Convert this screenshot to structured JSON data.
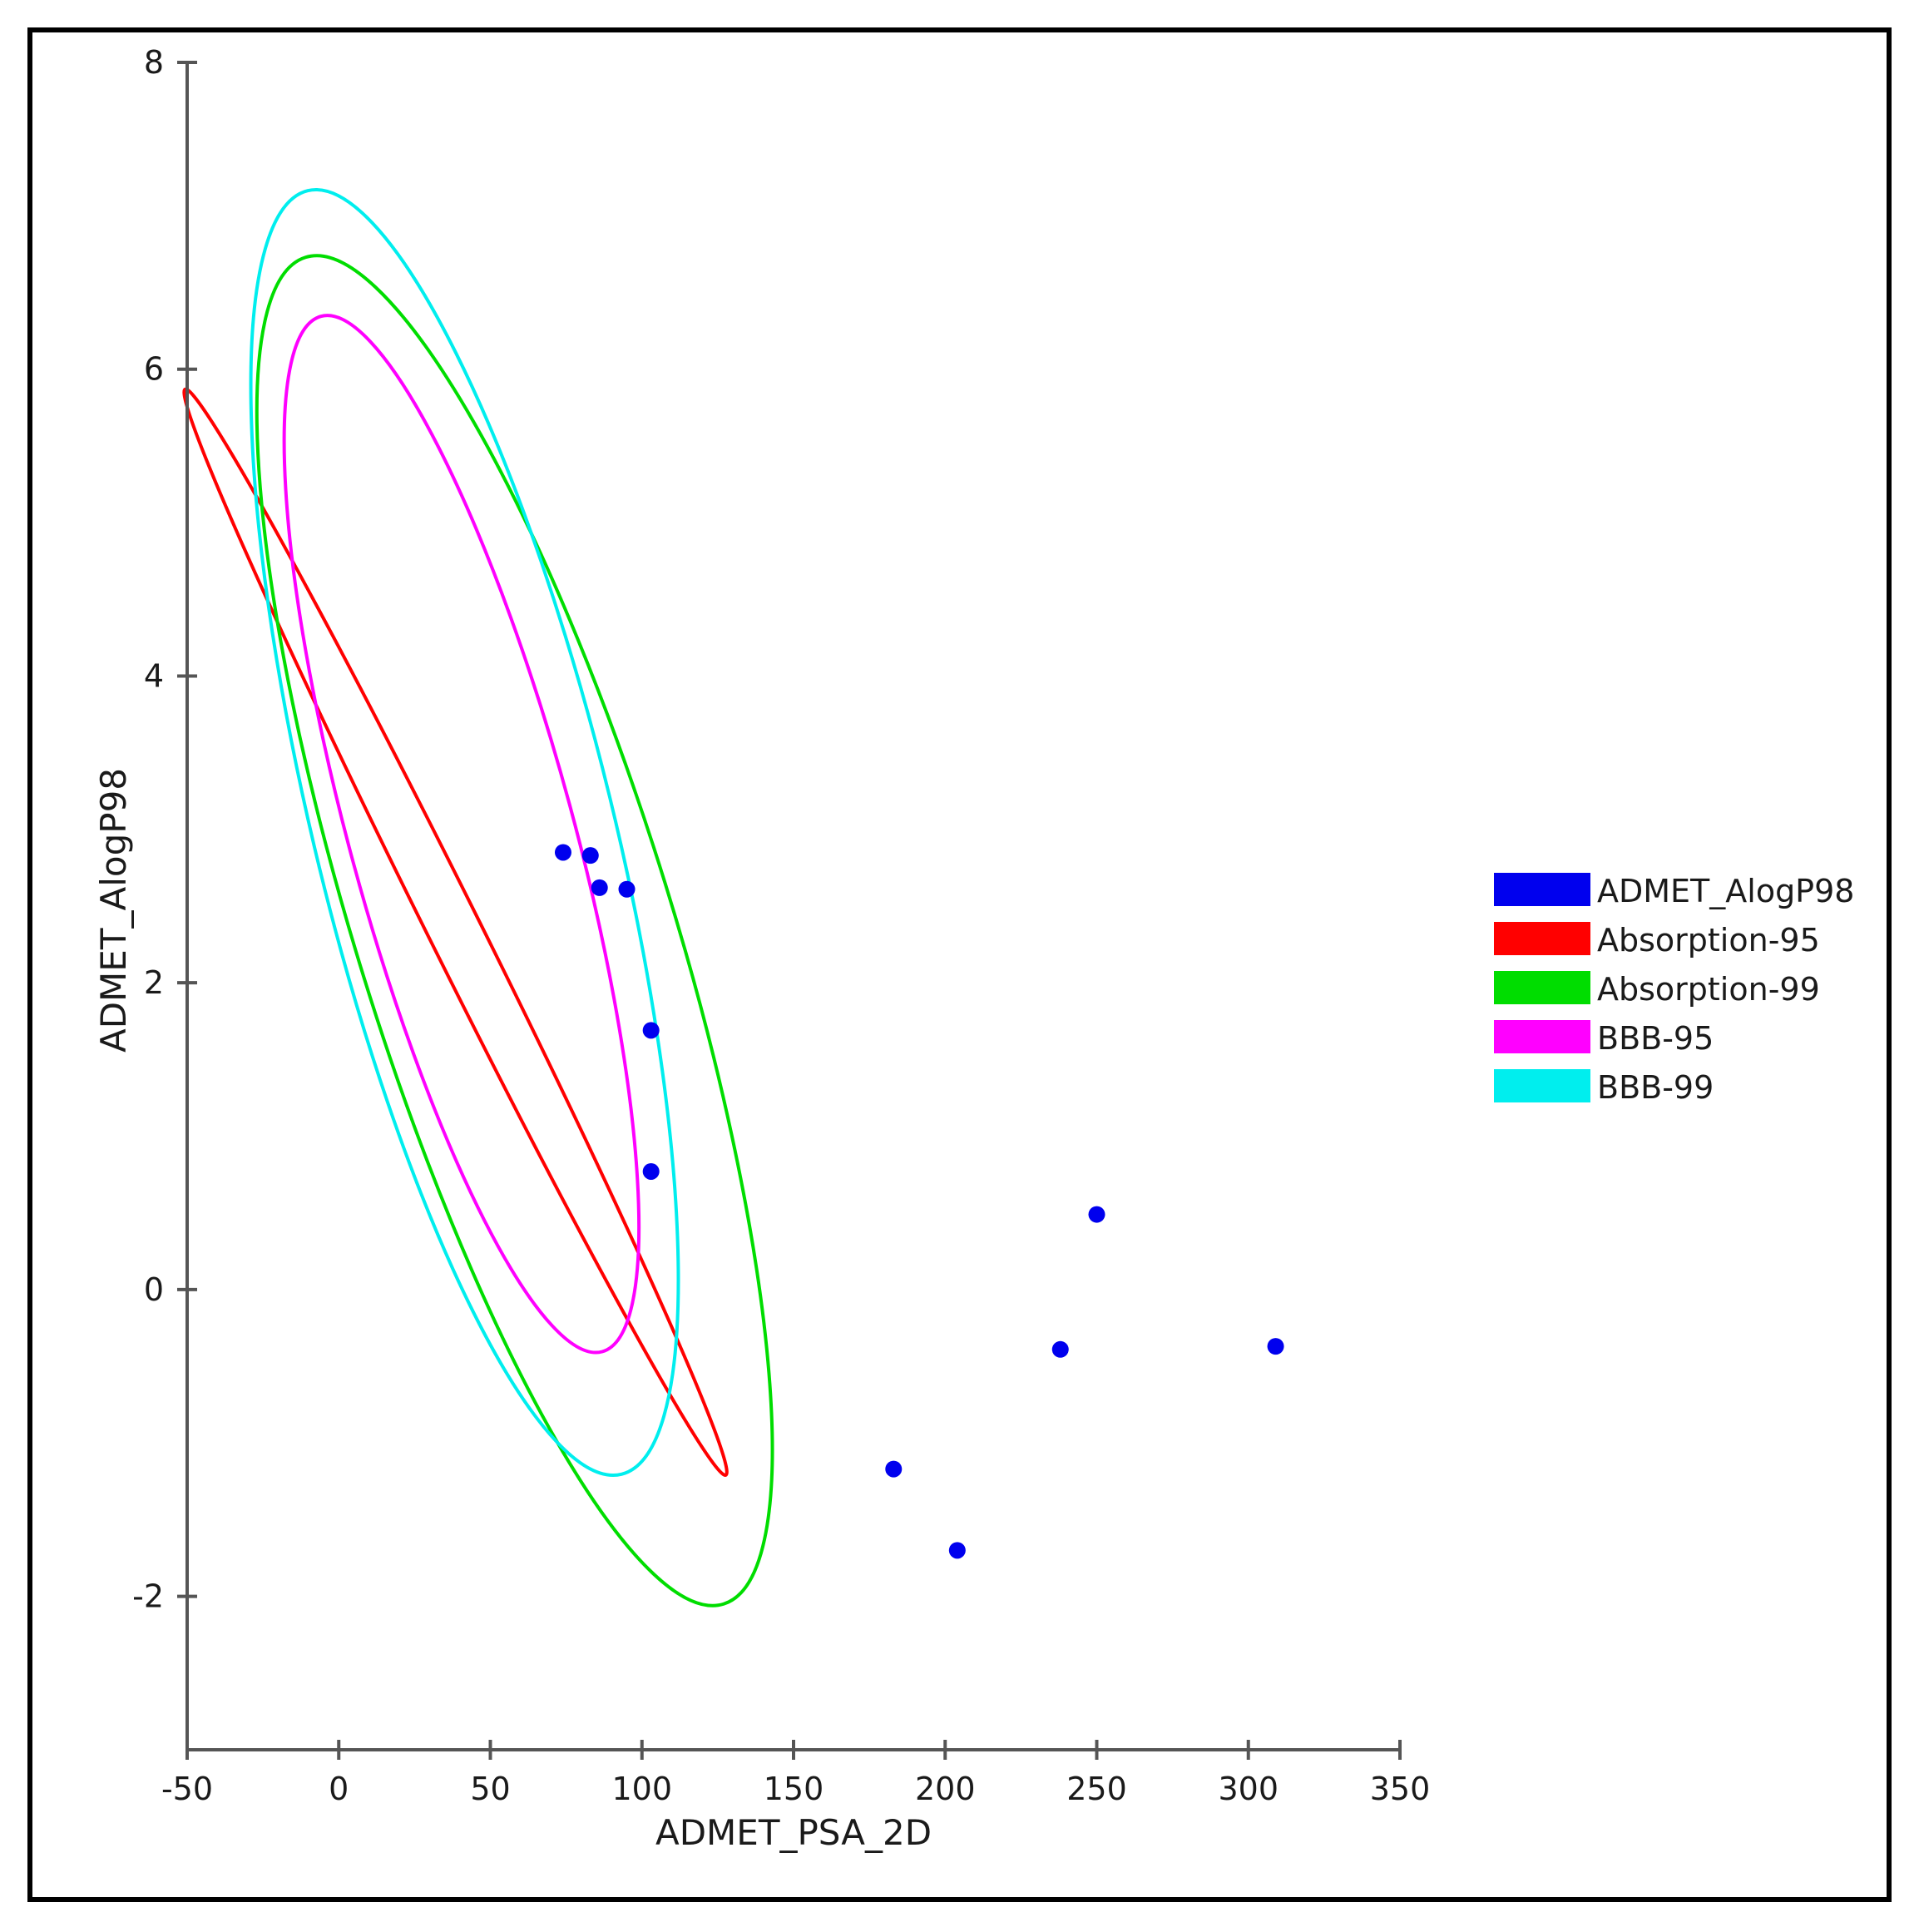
{
  "chart_data": {
    "type": "scatter",
    "title": "",
    "xlabel": "ADMET_PSA_2D",
    "ylabel": "ADMET_AlogP98",
    "xlim": [
      -50,
      350
    ],
    "ylim": [
      -3,
      8
    ],
    "xticks": [
      -50,
      0,
      50,
      100,
      150,
      200,
      250,
      300,
      350
    ],
    "yticks": [
      -2,
      0,
      2,
      4,
      6,
      8
    ],
    "grid": false,
    "legend_position": "right",
    "points": {
      "name": "ADMET_AlogP98",
      "color": "#0000ee",
      "x": [
        74,
        83,
        86,
        95,
        103,
        103,
        183,
        204,
        238,
        250,
        309
      ],
      "y": [
        2.85,
        2.83,
        2.62,
        2.61,
        1.69,
        0.77,
        -1.17,
        -1.7,
        -0.39,
        0.49,
        -0.37
      ]
    },
    "ellipses": [
      {
        "name": "Absorption-95",
        "color": "#ff0000",
        "center": [
          38.5,
          2.33
        ],
        "extent_x": 128,
        "extent_y": 5.87,
        "pin_x": [
          0,
          3.5
        ],
        "pin_y": [
          88,
          -1.2
        ]
      },
      {
        "name": "Absorption-99",
        "color": "#00dd00",
        "center": [
          58.0,
          2.34
        ],
        "extent_x": 143,
        "extent_y": 6.74,
        "pin_x": [
          -17,
          4
        ],
        "pin_y": [
          93,
          -2.05
        ]
      },
      {
        "name": "BBB-95",
        "color": "#ff00ff",
        "center": [
          40.5,
          2.97
        ],
        "extent_x": 99,
        "extent_y": 6.35,
        "pin_x": [
          -15,
          4.7
        ],
        "pin_y": [
          72,
          -0.4
        ]
      },
      {
        "name": "BBB-99",
        "color": "#00eeee",
        "center": [
          41.5,
          2.98
        ],
        "extent_x": 112,
        "extent_y": 7.17,
        "pin_x": [
          -27,
          5.1
        ],
        "pin_y": [
          80,
          -1.2
        ]
      }
    ],
    "legend": [
      "ADMET_AlogP98",
      "Absorption-95",
      "Absorption-99",
      "BBB-95",
      "BBB-99"
    ]
  }
}
